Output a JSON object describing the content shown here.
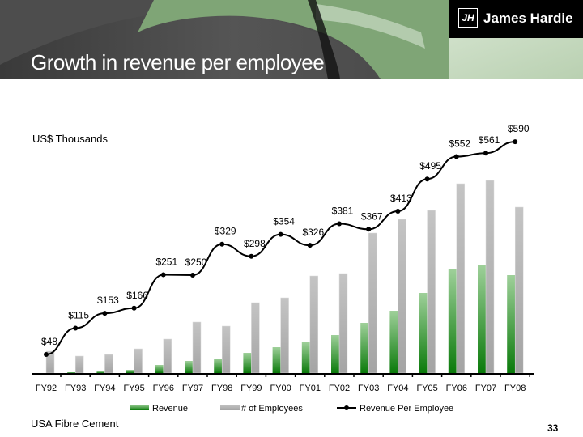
{
  "header": {
    "title": "Growth in revenue per employee",
    "logo_text": "James Hardie",
    "logo_mark": "JH"
  },
  "footer": {
    "left": "USA Fibre Cement",
    "page_number": "33"
  },
  "chart_data": {
    "type": "bar+line",
    "unit_label": "US$ Thousands",
    "categories": [
      "FY92",
      "FY93",
      "FY94",
      "FY95",
      "FY96",
      "FY97",
      "FY98",
      "FY99",
      "FY00",
      "FY01",
      "FY02",
      "FY03",
      "FY04",
      "FY05",
      "FY06",
      "FY07",
      "FY08"
    ],
    "series": [
      {
        "name": "Revenue",
        "type": "bar",
        "color": "#1e8a1e",
        "relative_values": [
          0,
          1,
          2,
          4,
          10,
          15,
          18,
          25,
          32,
          38,
          47,
          62,
          77,
          99,
          129,
          134,
          121
        ]
      },
      {
        "name": "# of Employees",
        "type": "bar",
        "color": "#b0b0b0",
        "relative_values": [
          27,
          21,
          23,
          30,
          42,
          63,
          58,
          87,
          93,
          120,
          123,
          173,
          190,
          201,
          234,
          238,
          205
        ]
      },
      {
        "name": "Revenue Per Employee",
        "type": "line",
        "color": "#000000",
        "values": [
          48,
          115,
          153,
          166,
          251,
          250,
          329,
          298,
          354,
          326,
          381,
          367,
          413,
          495,
          552,
          561,
          590
        ],
        "labels": [
          "$48",
          "$115",
          "$153",
          "$166",
          "$251",
          "$250",
          "$329",
          "$298",
          "$354",
          "$326",
          "$381",
          "$367",
          "$413",
          "$495",
          "$552",
          "$561",
          "$590"
        ]
      }
    ],
    "legend_placement": "bottom",
    "grid": false
  }
}
